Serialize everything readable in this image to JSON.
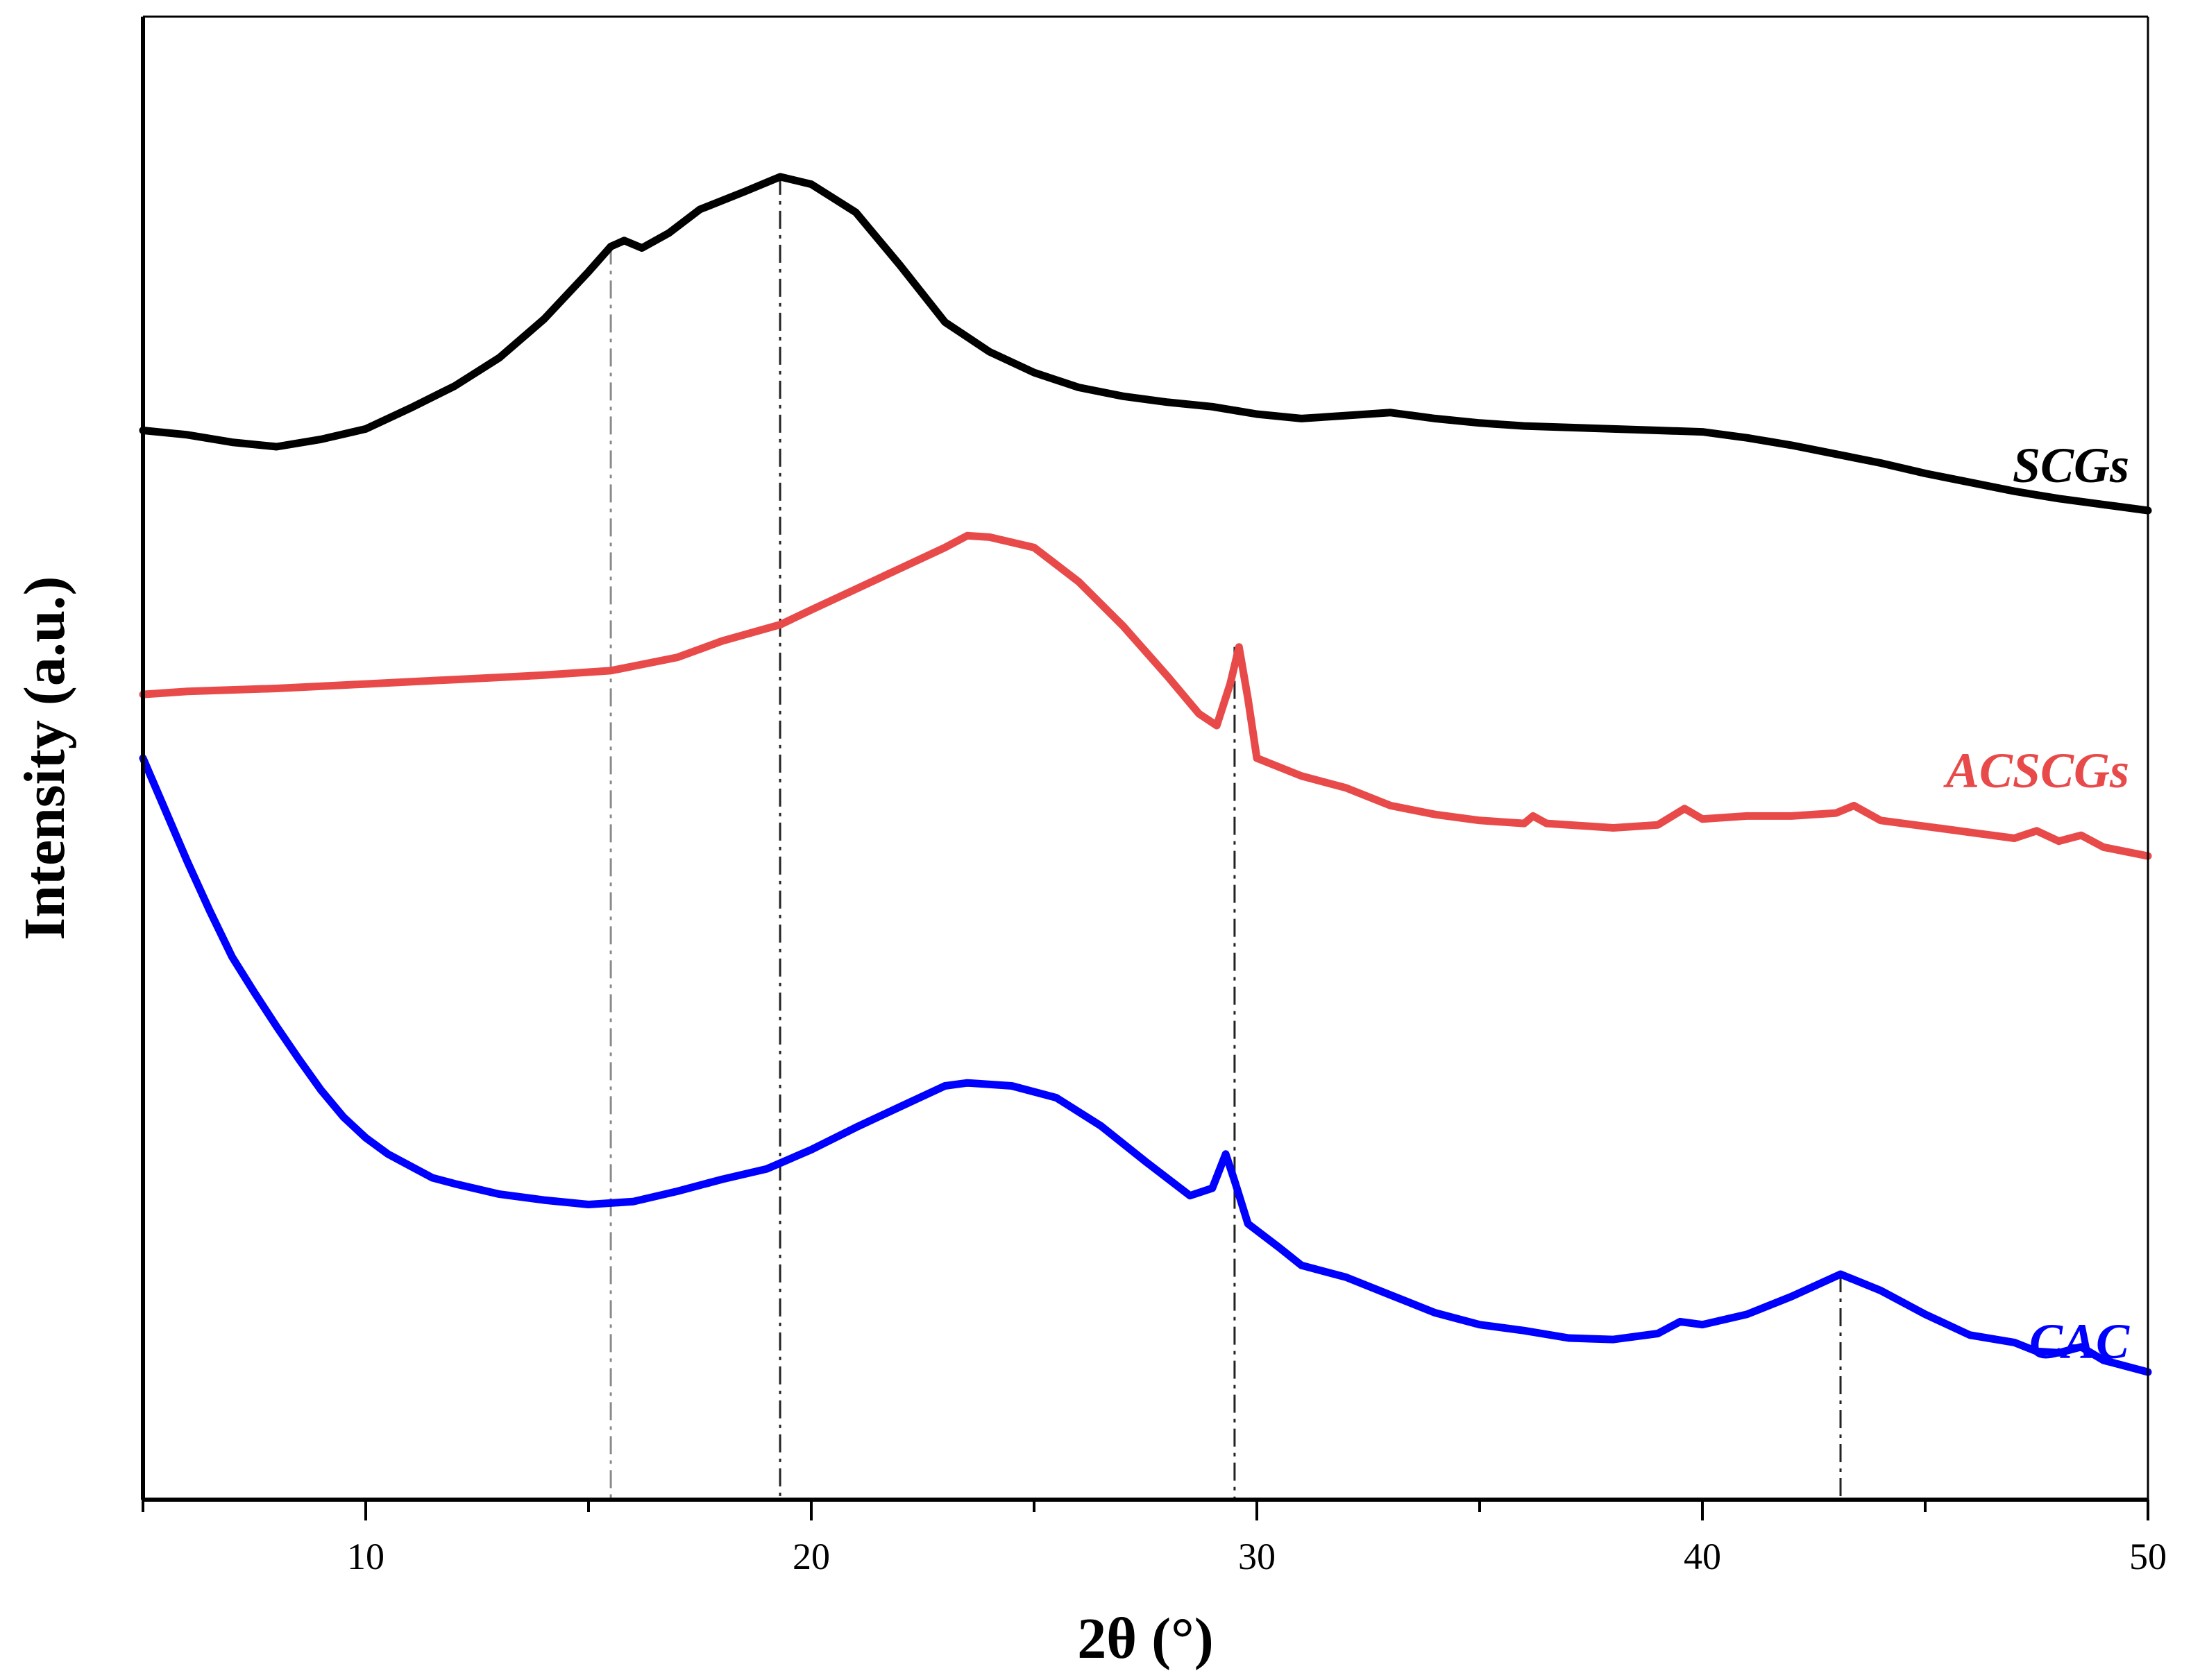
{
  "chart_data": {
    "type": "line",
    "title": "",
    "xlabel": "2θ (°)",
    "ylabel": "Intensity (a.u.)",
    "xlim": [
      5,
      50
    ],
    "ylim": [
      0,
      100
    ],
    "x_ticks": [
      10,
      20,
      30,
      40,
      50
    ],
    "x_tick_labels": [
      "10",
      "20",
      "30",
      "40",
      "50"
    ],
    "y_ticks_shown": false,
    "grid": false,
    "legend": "inline labels at right end of each curve",
    "reference_lines_x": [
      15.5,
      19.3,
      29.5,
      43.1
    ],
    "series": [
      {
        "name": "SCGs",
        "color": "#000000",
        "points": [
          [
            5,
            72.1
          ],
          [
            6,
            71.8
          ],
          [
            7,
            71.3
          ],
          [
            8,
            71.0
          ],
          [
            9,
            71.5
          ],
          [
            10,
            72.2
          ],
          [
            11,
            73.6
          ],
          [
            12,
            75.1
          ],
          [
            13,
            77.0
          ],
          [
            14,
            79.6
          ],
          [
            15,
            82.8
          ],
          [
            15.5,
            84.5
          ],
          [
            15.8,
            84.9
          ],
          [
            16.2,
            84.4
          ],
          [
            16.8,
            85.4
          ],
          [
            17.5,
            87.0
          ],
          [
            18.5,
            88.2
          ],
          [
            19.3,
            89.2
          ],
          [
            20,
            88.7
          ],
          [
            21,
            86.8
          ],
          [
            22,
            83.2
          ],
          [
            23,
            79.4
          ],
          [
            24,
            77.4
          ],
          [
            25,
            76.0
          ],
          [
            26,
            75.0
          ],
          [
            27,
            74.4
          ],
          [
            28,
            74.0
          ],
          [
            29,
            73.7
          ],
          [
            30,
            73.2
          ],
          [
            31,
            72.9
          ],
          [
            32,
            73.1
          ],
          [
            33,
            73.3
          ],
          [
            34,
            72.9
          ],
          [
            35,
            72.6
          ],
          [
            36,
            72.4
          ],
          [
            37,
            72.3
          ],
          [
            38,
            72.2
          ],
          [
            39,
            72.1
          ],
          [
            40,
            72.0
          ],
          [
            41,
            71.6
          ],
          [
            42,
            71.1
          ],
          [
            43,
            70.5
          ],
          [
            44,
            69.9
          ],
          [
            45,
            69.2
          ],
          [
            46,
            68.6
          ],
          [
            47,
            68.0
          ],
          [
            48,
            67.5
          ],
          [
            49,
            67.1
          ],
          [
            50,
            66.7
          ]
        ]
      },
      {
        "name": "ACSCGs",
        "color": "#e84a4a",
        "points": [
          [
            5,
            54.3
          ],
          [
            6,
            54.5
          ],
          [
            8,
            54.7
          ],
          [
            10,
            55.0
          ],
          [
            12,
            55.3
          ],
          [
            14,
            55.6
          ],
          [
            15.5,
            55.9
          ],
          [
            17,
            56.8
          ],
          [
            18,
            57.9
          ],
          [
            19.3,
            59.0
          ],
          [
            20,
            60.0
          ],
          [
            21,
            61.4
          ],
          [
            22,
            62.8
          ],
          [
            23,
            64.2
          ],
          [
            23.5,
            65.0
          ],
          [
            24,
            64.9
          ],
          [
            25,
            64.2
          ],
          [
            26,
            61.9
          ],
          [
            27,
            58.9
          ],
          [
            28,
            55.5
          ],
          [
            28.7,
            53.0
          ],
          [
            29.1,
            52.2
          ],
          [
            29.4,
            55.0
          ],
          [
            29.6,
            57.5
          ],
          [
            29.8,
            54.0
          ],
          [
            30,
            50.0
          ],
          [
            31,
            48.8
          ],
          [
            32,
            48.0
          ],
          [
            33,
            46.8
          ],
          [
            34,
            46.2
          ],
          [
            35,
            45.8
          ],
          [
            36,
            45.6
          ],
          [
            36.2,
            46.1
          ],
          [
            36.5,
            45.6
          ],
          [
            37,
            45.5
          ],
          [
            38,
            45.3
          ],
          [
            39,
            45.5
          ],
          [
            39.6,
            46.6
          ],
          [
            40,
            45.9
          ],
          [
            41,
            46.1
          ],
          [
            42,
            46.1
          ],
          [
            43,
            46.3
          ],
          [
            43.4,
            46.8
          ],
          [
            44,
            45.8
          ],
          [
            45,
            45.4
          ],
          [
            46,
            45.0
          ],
          [
            47,
            44.6
          ],
          [
            47.5,
            45.1
          ],
          [
            48,
            44.4
          ],
          [
            48.5,
            44.8
          ],
          [
            49,
            44.0
          ],
          [
            50,
            43.4
          ]
        ]
      },
      {
        "name": "CAC",
        "color": "#0000ff",
        "points": [
          [
            5,
            50.0
          ],
          [
            5.5,
            46.5
          ],
          [
            6,
            43.0
          ],
          [
            6.5,
            39.7
          ],
          [
            7,
            36.6
          ],
          [
            7.5,
            34.2
          ],
          [
            8,
            31.9
          ],
          [
            8.5,
            29.7
          ],
          [
            9,
            27.6
          ],
          [
            9.5,
            25.8
          ],
          [
            10,
            24.4
          ],
          [
            10.5,
            23.3
          ],
          [
            11,
            22.5
          ],
          [
            11.5,
            21.7
          ],
          [
            12,
            21.3
          ],
          [
            13,
            20.6
          ],
          [
            14,
            20.2
          ],
          [
            15,
            19.9
          ],
          [
            15.5,
            20.0
          ],
          [
            16,
            20.1
          ],
          [
            17,
            20.8
          ],
          [
            18,
            21.6
          ],
          [
            19,
            22.3
          ],
          [
            20,
            23.6
          ],
          [
            21,
            25.1
          ],
          [
            22,
            26.5
          ],
          [
            23,
            27.9
          ],
          [
            23.5,
            28.1
          ],
          [
            24.5,
            27.9
          ],
          [
            25.5,
            27.1
          ],
          [
            26.5,
            25.2
          ],
          [
            27.5,
            22.8
          ],
          [
            28.5,
            20.5
          ],
          [
            29,
            21.0
          ],
          [
            29.3,
            23.3
          ],
          [
            29.5,
            21.5
          ],
          [
            29.8,
            18.6
          ],
          [
            30.5,
            17.0
          ],
          [
            31,
            15.8
          ],
          [
            32,
            15.0
          ],
          [
            33,
            13.8
          ],
          [
            34,
            12.6
          ],
          [
            35,
            11.8
          ],
          [
            36,
            11.4
          ],
          [
            37,
            10.9
          ],
          [
            38,
            10.8
          ],
          [
            39,
            11.2
          ],
          [
            39.5,
            12.0
          ],
          [
            40,
            11.8
          ],
          [
            41,
            12.5
          ],
          [
            42,
            13.7
          ],
          [
            43.1,
            15.2
          ],
          [
            44,
            14.1
          ],
          [
            45,
            12.5
          ],
          [
            46,
            11.1
          ],
          [
            47,
            10.6
          ],
          [
            47.5,
            10.0
          ],
          [
            48,
            9.9
          ],
          [
            48.5,
            10.3
          ],
          [
            49,
            9.4
          ],
          [
            50,
            8.6
          ]
        ]
      }
    ]
  }
}
